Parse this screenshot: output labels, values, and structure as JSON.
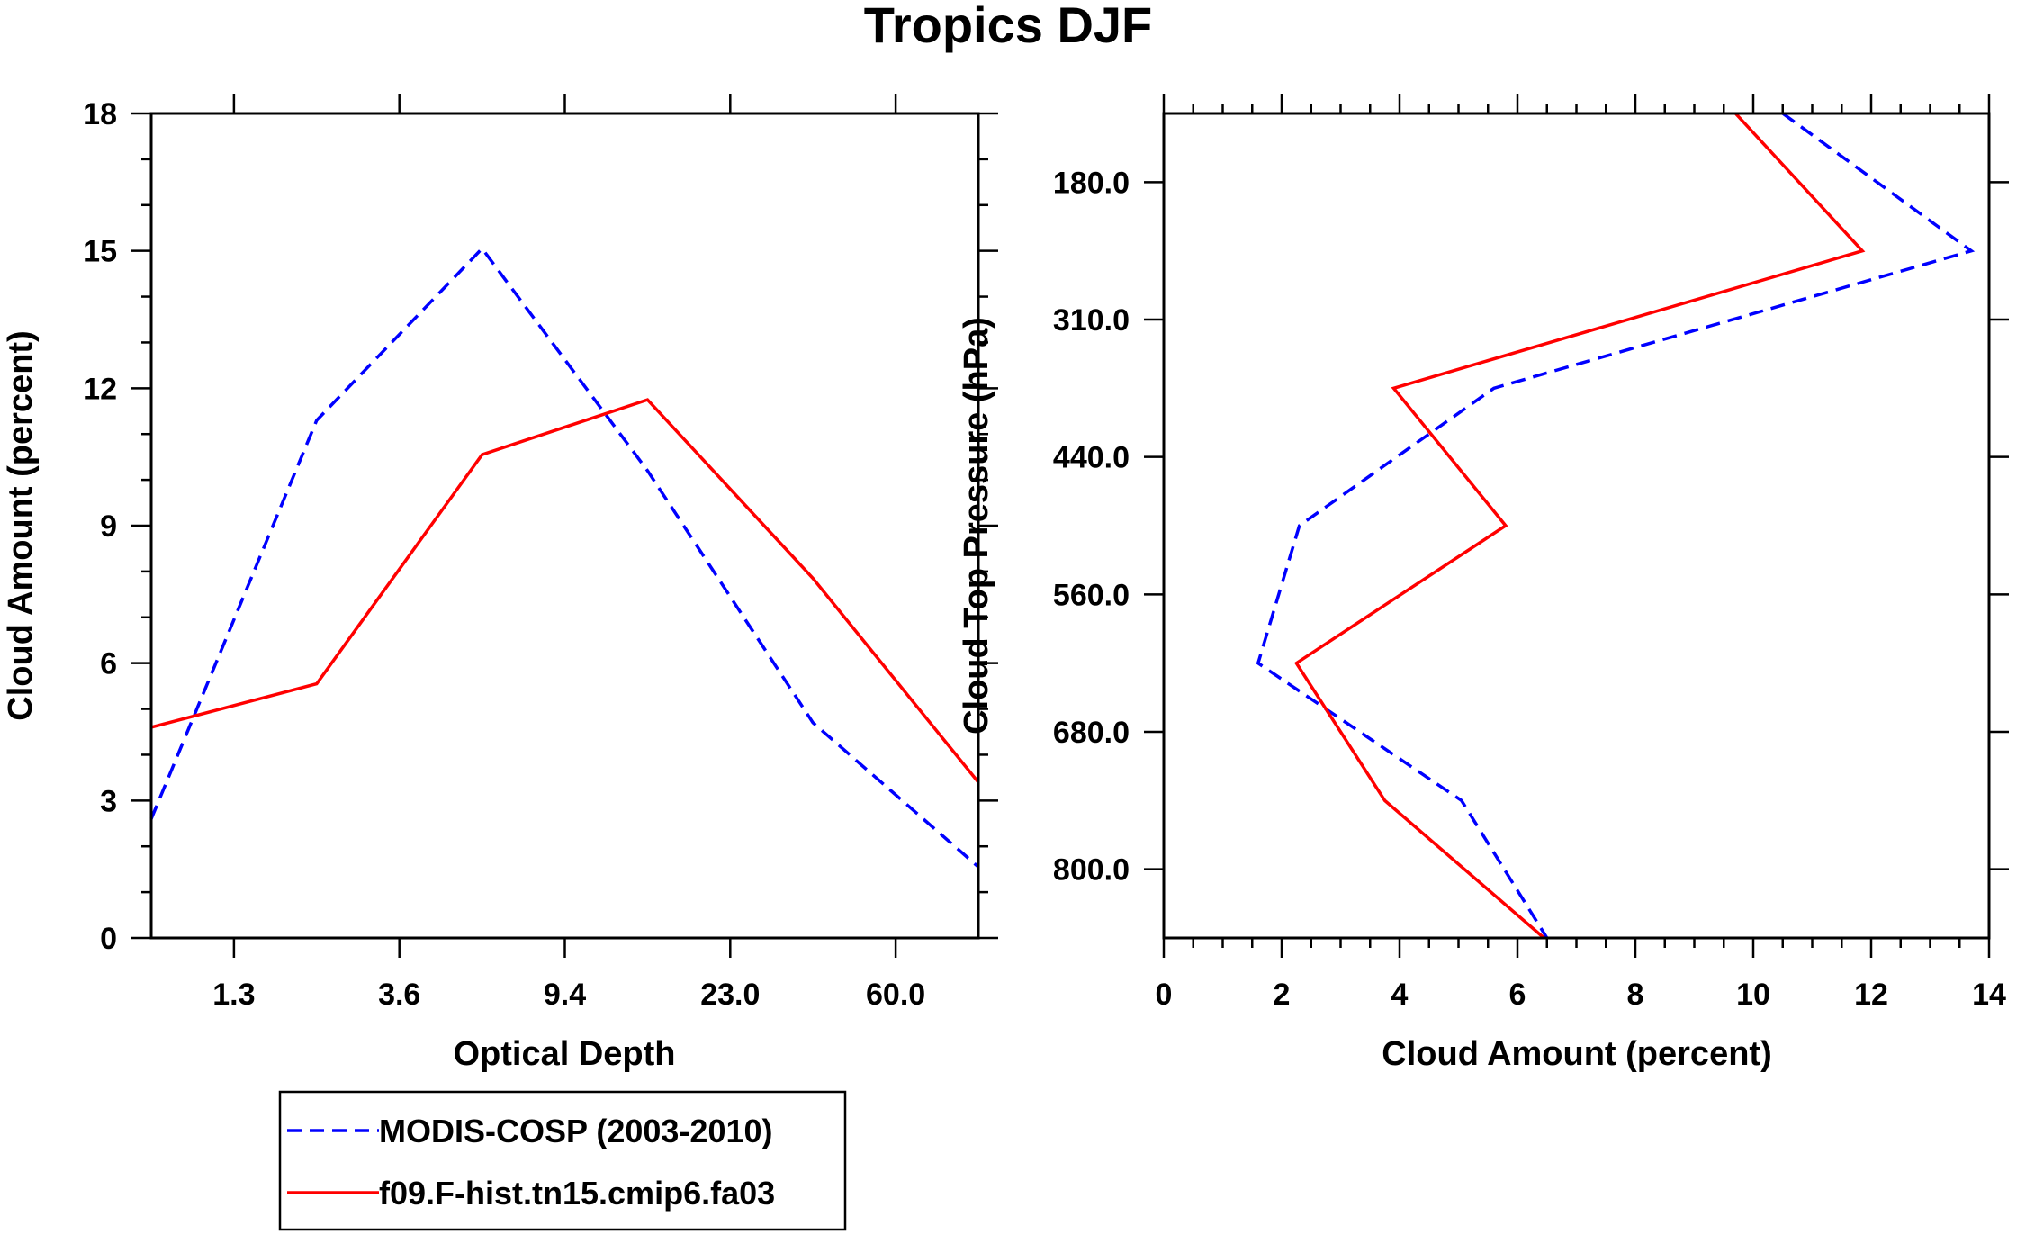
{
  "colors": {
    "series1": "#0000ff",
    "series2": "#ff0000",
    "axis": "#000000",
    "background": "#ffffff"
  },
  "chart_data": [
    {
      "type": "line",
      "title": "Tropics DJF",
      "xlabel": "Optical Depth",
      "ylabel": "Cloud Amount (percent)",
      "x_tick_labels": [
        "1.3",
        "3.6",
        "9.4",
        "23.0",
        "60.0"
      ],
      "y_tick_labels": [
        "0",
        "3",
        "6",
        "9",
        "12",
        "15",
        "18"
      ],
      "xlim": [
        0,
        10
      ],
      "ylim": [
        0,
        18
      ],
      "series": [
        {
          "name": "MODIS-COSP (2003-2010)",
          "style": "dashed",
          "x": [
            0,
            2,
            4,
            6,
            8,
            10
          ],
          "values": [
            2.6,
            11.3,
            15.05,
            10.2,
            4.7,
            1.55
          ]
        },
        {
          "name": "f09.F-hist.tn15.cmip6.fa03",
          "style": "solid",
          "x": [
            0,
            2,
            4,
            6,
            8,
            10
          ],
          "values": [
            4.6,
            5.55,
            10.55,
            11.75,
            7.85,
            3.4
          ]
        }
      ]
    },
    {
      "type": "line",
      "xlabel": "Cloud Amount (percent)",
      "ylabel": "Cloud Top Pressure (hPa)",
      "x_tick_labels": [
        "0",
        "2",
        "4",
        "6",
        "8",
        "10",
        "12",
        "14"
      ],
      "y_tick_labels": [
        "180.0",
        "310.0",
        "440.0",
        "560.0",
        "680.0",
        "800.0"
      ],
      "xlim": [
        0,
        14
      ],
      "ylim": [
        0,
        12
      ],
      "series": [
        {
          "name": "MODIS-COSP (2003-2010)",
          "style": "dashed",
          "values": [
            10.5,
            13.7,
            5.6,
            2.3,
            1.6,
            5.05,
            6.5
          ],
          "y": [
            0,
            2,
            4,
            6,
            8,
            10,
            12
          ]
        },
        {
          "name": "f09.F-hist.tn15.cmip6.fa03",
          "style": "solid",
          "values": [
            9.7,
            11.85,
            3.9,
            5.8,
            2.25,
            3.75,
            6.45
          ],
          "y": [
            0,
            2,
            4,
            6,
            8,
            10,
            12
          ]
        }
      ]
    }
  ],
  "legend": {
    "items": [
      {
        "label": "MODIS-COSP (2003-2010)",
        "style": "dashed"
      },
      {
        "label": "f09.F-hist.tn15.cmip6.fa03",
        "style": "solid"
      }
    ]
  }
}
